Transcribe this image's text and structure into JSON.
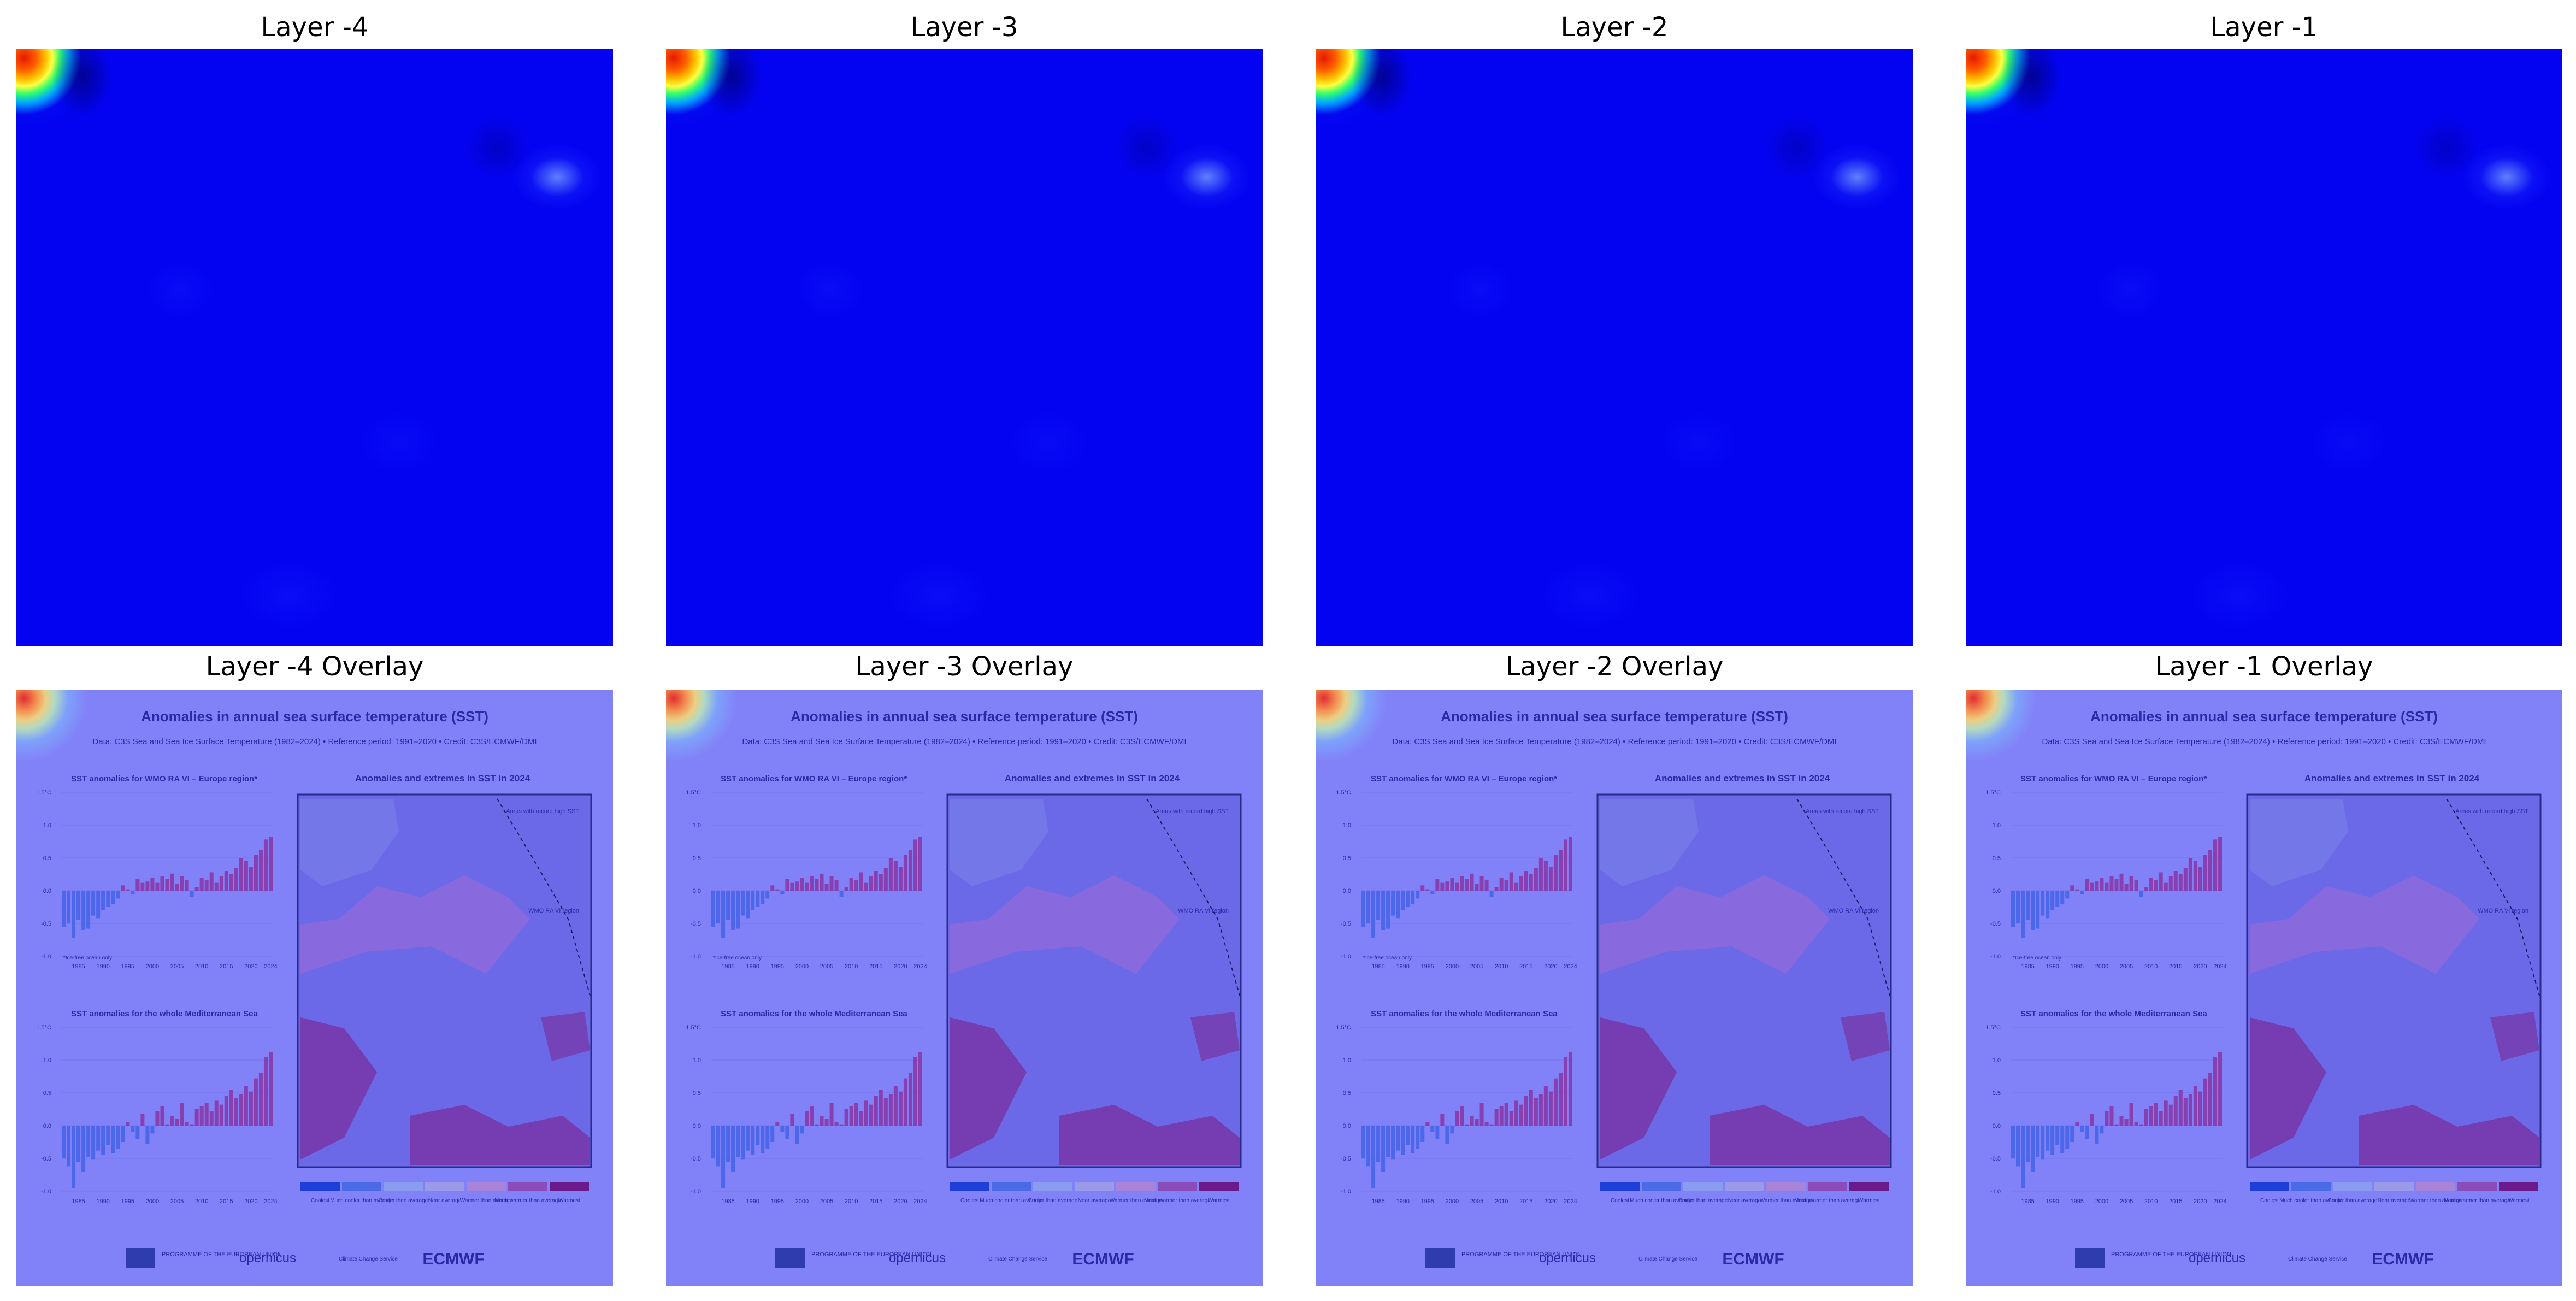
{
  "panels": [
    {
      "title": "Layer -4",
      "overlay_title": "Layer -4 Overlay"
    },
    {
      "title": "Layer -3",
      "overlay_title": "Layer -3 Overlay"
    },
    {
      "title": "Layer -2",
      "overlay_title": "Layer -2 Overlay"
    },
    {
      "title": "Layer -1",
      "overlay_title": "Layer -1 Overlay"
    }
  ],
  "infographic": {
    "title": "Anomalies in annual sea surface temperature (SST)",
    "subtitle": "Data: C3S Sea and Sea Ice Surface Temperature (1982–2024) • Reference period: 1991–2020 • Credit: C3S/ECMWF/DMI",
    "chart1_title": "SST anomalies for WMO RA VI – Europe region*",
    "chart1_footnote": "*Ice-free ocean only",
    "chart2_title": "SST anomalies for the whole Mediterranean Sea",
    "map_title": "Anomalies and extremes in SST in 2024",
    "map_note": "Areas with record high SST",
    "map_region": "WMO RA VI region",
    "y_ticks": [
      "1.5°C",
      "1.0",
      "0.5",
      "0.0",
      "-0.5",
      "-1.0"
    ],
    "x_ticks": [
      "1985",
      "1990",
      "1995",
      "2000",
      "2005",
      "2010",
      "2015",
      "2020",
      "2024"
    ],
    "legend": [
      "Coolest",
      "Much cooler than average",
      "Cooler than average",
      "Near average",
      "Warmer than average",
      "Much warmer than average",
      "Warmest"
    ],
    "legend_colors": [
      "#1d3fd8",
      "#4a6ae6",
      "#8a9cf0",
      "#9a9ae8",
      "#a884d8",
      "#8a4cb8",
      "#6a1a8a"
    ],
    "logos": [
      "PROGRAMME OF THE EUROPEAN UNION",
      "opernicus",
      "Climate Change Service",
      "ECMWF"
    ],
    "series_europe": [
      -0.55,
      -0.5,
      -0.72,
      -0.45,
      -0.6,
      -0.58,
      -0.38,
      -0.42,
      -0.3,
      -0.25,
      -0.2,
      -0.12,
      0.08,
      0.02,
      -0.05,
      0.18,
      0.12,
      0.14,
      0.2,
      0.12,
      0.22,
      0.18,
      0.26,
      0.1,
      0.22,
      0.16,
      -0.1,
      0.05,
      0.2,
      0.16,
      0.28,
      0.12,
      0.22,
      0.3,
      0.25,
      0.35,
      0.5,
      0.45,
      0.36,
      0.55,
      0.62,
      0.78,
      0.82
    ],
    "series_med": [
      -0.5,
      -0.62,
      -0.95,
      -0.55,
      -0.7,
      -0.48,
      -0.52,
      -0.38,
      -0.45,
      -0.3,
      -0.42,
      -0.35,
      -0.25,
      0.05,
      -0.1,
      -0.2,
      0.18,
      -0.28,
      -0.12,
      0.22,
      0.3,
      0.02,
      0.15,
      0.1,
      0.35,
      0.05,
      0.02,
      0.25,
      0.3,
      0.35,
      0.22,
      0.38,
      0.32,
      0.45,
      0.55,
      0.42,
      0.48,
      0.6,
      0.52,
      0.72,
      0.8,
      1.05,
      1.12
    ]
  },
  "colors": {
    "heatmap_base": "#0303f2",
    "overlay_tint": "#8282f8",
    "overlay_ink": "#2a2aa8"
  }
}
